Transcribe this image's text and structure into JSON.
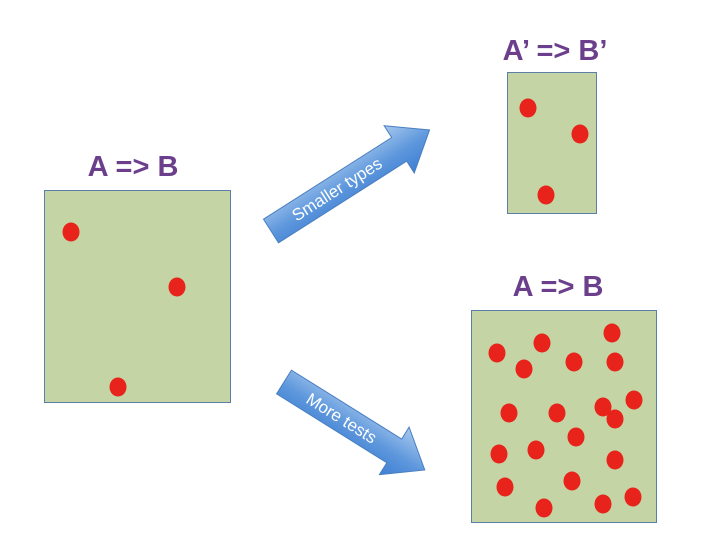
{
  "colors": {
    "title": "#6b3f8c",
    "box_fill": "#c4d4a4",
    "box_border": "#5b7fa6",
    "dot": "#e8231b",
    "arrow_light": "#a8c8ee",
    "arrow_dark": "#3f7fd4"
  },
  "left": {
    "title": "A => B"
  },
  "top_right": {
    "title": "A’ => B’"
  },
  "bottom_right": {
    "title": "A => B"
  },
  "arrows": {
    "upper_label": "Smaller types",
    "lower_label": "More tests"
  }
}
